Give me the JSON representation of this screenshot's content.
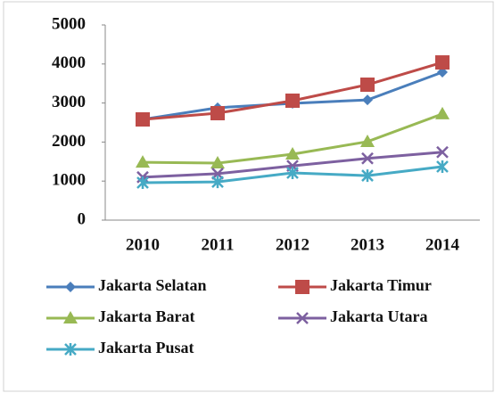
{
  "chart_data": {
    "type": "line",
    "categories": [
      "2010",
      "2011",
      "2012",
      "2013",
      "2014"
    ],
    "series": [
      {
        "name": "Jakarta Selatan",
        "color": "#4a7ebb",
        "marker": "diamond",
        "values": [
          2580,
          2880,
          2990,
          3080,
          3790
        ]
      },
      {
        "name": "Jakarta Timur",
        "color": "#be4b48",
        "marker": "square",
        "values": [
          2580,
          2740,
          3060,
          3470,
          4040
        ]
      },
      {
        "name": "Jakarta Barat",
        "color": "#98b954",
        "marker": "triangle",
        "values": [
          1480,
          1460,
          1690,
          2010,
          2720
        ]
      },
      {
        "name": "Jakarta Utara",
        "color": "#7d60a0",
        "marker": "x",
        "values": [
          1100,
          1190,
          1390,
          1580,
          1740
        ]
      },
      {
        "name": "Jakarta Pusat",
        "color": "#46aac5",
        "marker": "star",
        "values": [
          960,
          980,
          1210,
          1140,
          1370
        ]
      }
    ],
    "ylim": [
      0,
      5000
    ],
    "yticks": [
      0,
      1000,
      2000,
      3000,
      4000,
      5000
    ],
    "grid": false,
    "legend": "bottom"
  }
}
